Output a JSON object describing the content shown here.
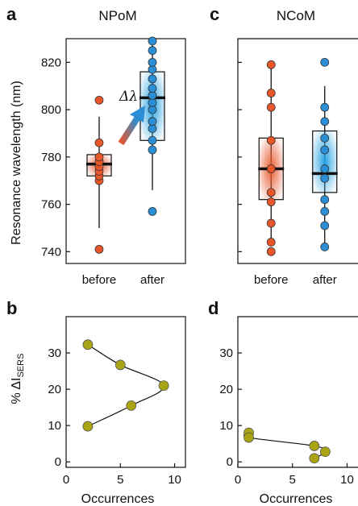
{
  "figure": {
    "panels": {
      "a": {
        "letter": "a",
        "title": "NPoM"
      },
      "b": {
        "letter": "b"
      },
      "c": {
        "letter": "c",
        "title": "NCoM"
      },
      "d": {
        "letter": "d"
      }
    },
    "top_ylabel": "Resonance wavelength (nm)",
    "bottom_ylabel_main": "% ΔI",
    "bottom_ylabel_sub": "SERS",
    "bottom_xlabel": "Occurrences",
    "delta_label": "Δλ"
  },
  "chart_data": [
    {
      "panel": "a",
      "type": "box",
      "title": "NPoM",
      "ylabel": "Resonance wavelength (nm)",
      "categories": [
        "before",
        "after"
      ],
      "ylim": [
        735,
        830
      ],
      "yticks": [
        740,
        760,
        780,
        800,
        820
      ],
      "boxes": [
        {
          "name": "before",
          "color": "#e8562a",
          "whisker_low": 750,
          "q1": 772,
          "median": 777,
          "q3": 781,
          "whisker_high": 797,
          "points": [
            741,
            770,
            772,
            774,
            776,
            778,
            780,
            786,
            804
          ]
        },
        {
          "name": "after",
          "color": "#2a8fd6",
          "whisker_low": 766,
          "q1": 787,
          "median": 805,
          "q3": 816,
          "whisker_high": 829,
          "points": [
            757,
            783,
            787,
            792,
            795,
            800,
            803,
            806,
            809,
            813,
            817,
            820,
            825,
            829
          ]
        }
      ],
      "annotation": "Δλ"
    },
    {
      "panel": "c",
      "type": "box",
      "title": "NCoM",
      "categories": [
        "before",
        "after"
      ],
      "ylim": [
        735,
        830
      ],
      "yticks": [
        740,
        760,
        780,
        800,
        820
      ],
      "boxes": [
        {
          "name": "before",
          "color": "#e8562a",
          "whisker_low": 743,
          "q1": 762,
          "median": 775,
          "q3": 788,
          "whisker_high": 819,
          "points": [
            740,
            744,
            752,
            761,
            765,
            775,
            787,
            801,
            807,
            819
          ]
        },
        {
          "name": "after",
          "color": "#2a8fd6",
          "whisker_low": 742,
          "q1": 765,
          "median": 773,
          "q3": 791,
          "whisker_high": 810,
          "points": [
            742,
            751,
            757,
            762,
            771,
            775,
            783,
            788,
            795,
            801,
            820
          ]
        }
      ]
    },
    {
      "panel": "b",
      "type": "scatter",
      "xlabel": "Occurrences",
      "ylabel": "% ΔI SERS",
      "xlim": [
        0,
        11
      ],
      "ylim": [
        -1.5,
        40
      ],
      "xticks": [
        0,
        5,
        10
      ],
      "yticks": [
        0,
        10,
        20,
        30
      ],
      "color": "#a9a414",
      "points": [
        [
          2,
          32.3
        ],
        [
          5,
          26.7
        ],
        [
          9,
          21
        ],
        [
          6,
          15.5
        ],
        [
          2,
          9.8
        ]
      ],
      "fit_curve": true
    },
    {
      "panel": "d",
      "type": "scatter",
      "xlabel": "Occurrences",
      "xlim": [
        0,
        11
      ],
      "ylim": [
        -1.5,
        40
      ],
      "xticks": [
        0,
        5,
        10
      ],
      "yticks": [
        0,
        10,
        20,
        30
      ],
      "color": "#a9a414",
      "points": [
        [
          1,
          8
        ],
        [
          1,
          6.7
        ],
        [
          7,
          4.4
        ],
        [
          8,
          2.8
        ],
        [
          7,
          1
        ]
      ],
      "fit_curve": true
    }
  ]
}
